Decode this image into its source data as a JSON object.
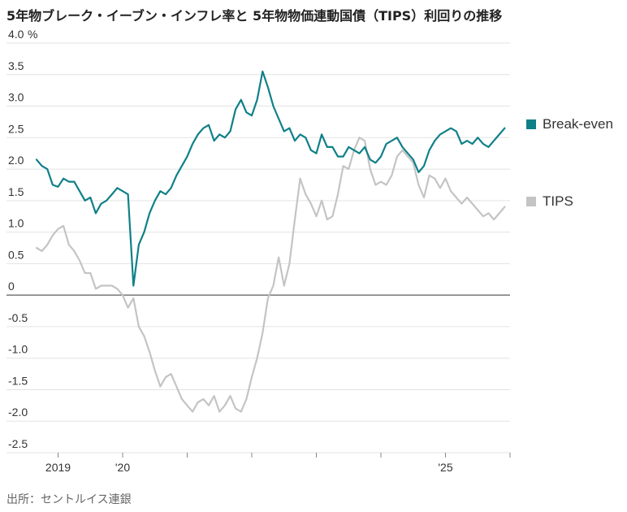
{
  "title": "5年物ブレーク・イーブン・インフレ率と 5年物物価連動国債（TIPS）利回りの推移",
  "source": "出所：セントルイス連銀",
  "colors": {
    "break_even": "#0f8088",
    "tips": "#c4c4c4",
    "grid": "#e3e3e3",
    "zero_line": "#777777"
  },
  "chart_data": {
    "type": "line",
    "y_unit": "%",
    "ylim": [
      -2.5,
      4.0
    ],
    "y_ticks": [
      {
        "value": 4.0,
        "label": "4.0"
      },
      {
        "value": 3.5,
        "label": "3.5"
      },
      {
        "value": 3.0,
        "label": "3.0"
      },
      {
        "value": 2.5,
        "label": "2.5"
      },
      {
        "value": 2.0,
        "label": "2.0"
      },
      {
        "value": 1.5,
        "label": "1.5"
      },
      {
        "value": 1.0,
        "label": "1.0"
      },
      {
        "value": 0.5,
        "label": "0.5"
      },
      {
        "value": 0,
        "label": "0"
      },
      {
        "value": -0.5,
        "label": "-0.5"
      },
      {
        "value": -1.0,
        "label": "-1.0"
      },
      {
        "value": -1.5,
        "label": "-1.5"
      },
      {
        "value": -2.0,
        "label": "-2.0"
      },
      {
        "value": -2.5,
        "label": "-2.5"
      }
    ],
    "xlim": [
      "2018-09",
      "2026-01"
    ],
    "x_ticks": [
      {
        "value": "2019-01",
        "label": "2019"
      },
      {
        "value": "2020-01",
        "label": "'20"
      },
      {
        "value": "2021-01",
        "label": ""
      },
      {
        "value": "2022-01",
        "label": ""
      },
      {
        "value": "2023-01",
        "label": ""
      },
      {
        "value": "2024-01",
        "label": ""
      },
      {
        "value": "2025-01",
        "label": "'25"
      },
      {
        "value": "2026-01",
        "label": ""
      }
    ],
    "grid": true,
    "legend_position": "right",
    "series": [
      {
        "name": "Break-even",
        "color": "#0f8088",
        "points": [
          [
            "2018-09",
            2.15
          ],
          [
            "2018-10",
            2.05
          ],
          [
            "2018-11",
            2.0
          ],
          [
            "2018-12",
            1.75
          ],
          [
            "2019-01",
            1.72
          ],
          [
            "2019-02",
            1.85
          ],
          [
            "2019-03",
            1.8
          ],
          [
            "2019-04",
            1.8
          ],
          [
            "2019-05",
            1.65
          ],
          [
            "2019-06",
            1.5
          ],
          [
            "2019-07",
            1.55
          ],
          [
            "2019-08",
            1.3
          ],
          [
            "2019-09",
            1.45
          ],
          [
            "2019-10",
            1.5
          ],
          [
            "2019-11",
            1.6
          ],
          [
            "2019-12",
            1.7
          ],
          [
            "2020-01",
            1.65
          ],
          [
            "2020-02",
            1.6
          ],
          [
            "2020-03",
            0.15
          ],
          [
            "2020-04",
            0.8
          ],
          [
            "2020-05",
            1.0
          ],
          [
            "2020-06",
            1.3
          ],
          [
            "2020-07",
            1.5
          ],
          [
            "2020-08",
            1.65
          ],
          [
            "2020-09",
            1.6
          ],
          [
            "2020-10",
            1.7
          ],
          [
            "2020-11",
            1.9
          ],
          [
            "2020-12",
            2.05
          ],
          [
            "2021-01",
            2.2
          ],
          [
            "2021-02",
            2.4
          ],
          [
            "2021-03",
            2.55
          ],
          [
            "2021-04",
            2.65
          ],
          [
            "2021-05",
            2.7
          ],
          [
            "2021-06",
            2.45
          ],
          [
            "2021-07",
            2.55
          ],
          [
            "2021-08",
            2.5
          ],
          [
            "2021-09",
            2.6
          ],
          [
            "2021-10",
            2.95
          ],
          [
            "2021-11",
            3.1
          ],
          [
            "2021-12",
            2.9
          ],
          [
            "2022-01",
            2.85
          ],
          [
            "2022-02",
            3.1
          ],
          [
            "2022-03",
            3.55
          ],
          [
            "2022-04",
            3.3
          ],
          [
            "2022-05",
            3.0
          ],
          [
            "2022-06",
            2.8
          ],
          [
            "2022-07",
            2.6
          ],
          [
            "2022-08",
            2.65
          ],
          [
            "2022-09",
            2.45
          ],
          [
            "2022-10",
            2.55
          ],
          [
            "2022-11",
            2.5
          ],
          [
            "2022-12",
            2.3
          ],
          [
            "2023-01",
            2.25
          ],
          [
            "2023-02",
            2.55
          ],
          [
            "2023-03",
            2.35
          ],
          [
            "2023-04",
            2.35
          ],
          [
            "2023-05",
            2.2
          ],
          [
            "2023-06",
            2.2
          ],
          [
            "2023-07",
            2.35
          ],
          [
            "2023-08",
            2.3
          ],
          [
            "2023-09",
            2.25
          ],
          [
            "2023-10",
            2.35
          ],
          [
            "2023-11",
            2.15
          ],
          [
            "2023-12",
            2.1
          ],
          [
            "2024-01",
            2.2
          ],
          [
            "2024-02",
            2.4
          ],
          [
            "2024-03",
            2.45
          ],
          [
            "2024-04",
            2.5
          ],
          [
            "2024-05",
            2.35
          ],
          [
            "2024-06",
            2.25
          ],
          [
            "2024-07",
            2.15
          ],
          [
            "2024-08",
            1.95
          ],
          [
            "2024-09",
            2.05
          ],
          [
            "2024-10",
            2.3
          ],
          [
            "2024-11",
            2.45
          ],
          [
            "2024-12",
            2.55
          ],
          [
            "2025-01",
            2.6
          ],
          [
            "2025-02",
            2.65
          ],
          [
            "2025-03",
            2.6
          ],
          [
            "2025-04",
            2.4
          ],
          [
            "2025-05",
            2.45
          ],
          [
            "2025-06",
            2.4
          ],
          [
            "2025-07",
            2.5
          ],
          [
            "2025-08",
            2.4
          ],
          [
            "2025-09",
            2.35
          ],
          [
            "2025-10",
            2.45
          ],
          [
            "2025-11",
            2.55
          ],
          [
            "2025-12",
            2.65
          ]
        ]
      },
      {
        "name": "TIPS",
        "color": "#c4c4c4",
        "points": [
          [
            "2018-09",
            0.75
          ],
          [
            "2018-10",
            0.7
          ],
          [
            "2018-11",
            0.8
          ],
          [
            "2018-12",
            0.95
          ],
          [
            "2019-01",
            1.05
          ],
          [
            "2019-02",
            1.1
          ],
          [
            "2019-03",
            0.8
          ],
          [
            "2019-04",
            0.7
          ],
          [
            "2019-05",
            0.55
          ],
          [
            "2019-06",
            0.35
          ],
          [
            "2019-07",
            0.35
          ],
          [
            "2019-08",
            0.1
          ],
          [
            "2019-09",
            0.15
          ],
          [
            "2019-10",
            0.15
          ],
          [
            "2019-11",
            0.15
          ],
          [
            "2019-12",
            0.1
          ],
          [
            "2020-01",
            0.0
          ],
          [
            "2020-02",
            -0.2
          ],
          [
            "2020-03",
            -0.05
          ],
          [
            "2020-04",
            -0.5
          ],
          [
            "2020-05",
            -0.65
          ],
          [
            "2020-06",
            -0.9
          ],
          [
            "2020-07",
            -1.2
          ],
          [
            "2020-08",
            -1.45
          ],
          [
            "2020-09",
            -1.3
          ],
          [
            "2020-10",
            -1.25
          ],
          [
            "2020-11",
            -1.45
          ],
          [
            "2020-12",
            -1.65
          ],
          [
            "2021-01",
            -1.75
          ],
          [
            "2021-02",
            -1.85
          ],
          [
            "2021-03",
            -1.7
          ],
          [
            "2021-04",
            -1.65
          ],
          [
            "2021-05",
            -1.75
          ],
          [
            "2021-06",
            -1.6
          ],
          [
            "2021-07",
            -1.85
          ],
          [
            "2021-08",
            -1.75
          ],
          [
            "2021-09",
            -1.6
          ],
          [
            "2021-10",
            -1.8
          ],
          [
            "2021-11",
            -1.85
          ],
          [
            "2021-12",
            -1.65
          ],
          [
            "2022-01",
            -1.3
          ],
          [
            "2022-02",
            -1.0
          ],
          [
            "2022-03",
            -0.6
          ],
          [
            "2022-04",
            -0.05
          ],
          [
            "2022-05",
            0.15
          ],
          [
            "2022-06",
            0.6
          ],
          [
            "2022-07",
            0.15
          ],
          [
            "2022-08",
            0.5
          ],
          [
            "2022-09",
            1.2
          ],
          [
            "2022-10",
            1.85
          ],
          [
            "2022-11",
            1.6
          ],
          [
            "2022-12",
            1.45
          ],
          [
            "2023-01",
            1.25
          ],
          [
            "2023-02",
            1.5
          ],
          [
            "2023-03",
            1.2
          ],
          [
            "2023-04",
            1.25
          ],
          [
            "2023-05",
            1.6
          ],
          [
            "2023-06",
            2.05
          ],
          [
            "2023-07",
            2.0
          ],
          [
            "2023-08",
            2.3
          ],
          [
            "2023-09",
            2.5
          ],
          [
            "2023-10",
            2.45
          ],
          [
            "2023-11",
            2.0
          ],
          [
            "2023-12",
            1.75
          ],
          [
            "2024-01",
            1.8
          ],
          [
            "2024-02",
            1.75
          ],
          [
            "2024-03",
            1.9
          ],
          [
            "2024-04",
            2.2
          ],
          [
            "2024-05",
            2.3
          ],
          [
            "2024-06",
            2.2
          ],
          [
            "2024-07",
            2.1
          ],
          [
            "2024-08",
            1.75
          ],
          [
            "2024-09",
            1.55
          ],
          [
            "2024-10",
            1.9
          ],
          [
            "2024-11",
            1.85
          ],
          [
            "2024-12",
            1.7
          ],
          [
            "2025-01",
            1.85
          ],
          [
            "2025-02",
            1.65
          ],
          [
            "2025-03",
            1.55
          ],
          [
            "2025-04",
            1.45
          ],
          [
            "2025-05",
            1.55
          ],
          [
            "2025-06",
            1.45
          ],
          [
            "2025-07",
            1.35
          ],
          [
            "2025-08",
            1.25
          ],
          [
            "2025-09",
            1.3
          ],
          [
            "2025-10",
            1.2
          ],
          [
            "2025-11",
            1.3
          ],
          [
            "2025-12",
            1.4
          ]
        ]
      }
    ]
  }
}
